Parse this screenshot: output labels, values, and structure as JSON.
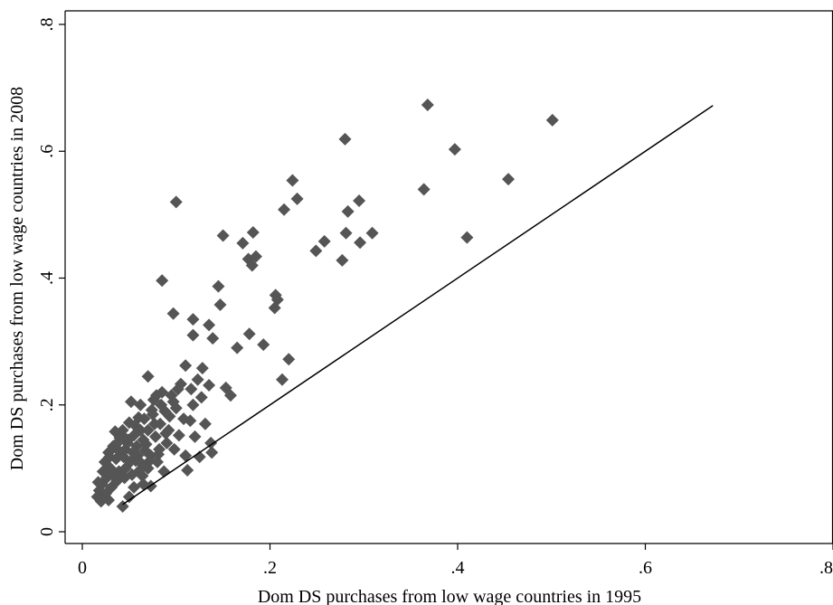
{
  "chart_data": {
    "type": "scatter",
    "title": "",
    "xlabel": "Dom DS purchases from low wage countries in 1995",
    "ylabel": "Dom DS purchases from low wage countries in 2008",
    "xlim": [
      0,
      0.8
    ],
    "ylim": [
      0,
      0.8
    ],
    "xticks": [
      0,
      0.2,
      0.4,
      0.6,
      0.8
    ],
    "xtick_labels": [
      "0",
      ".2",
      ".4",
      ".6",
      ".8"
    ],
    "yticks": [
      0,
      0.2,
      0.4,
      0.6,
      0.8
    ],
    "ytick_labels": [
      "0",
      ".2",
      ".4",
      ".6",
      ".8"
    ],
    "grid": false,
    "marker": "diamond",
    "marker_color": "#555555",
    "reference_line": {
      "x": [
        0.043,
        0.672
      ],
      "y": [
        0.043,
        0.672
      ]
    },
    "points": [
      [
        0.368,
        0.673
      ],
      [
        0.501,
        0.649
      ],
      [
        0.28,
        0.619
      ],
      [
        0.397,
        0.603
      ],
      [
        0.454,
        0.556
      ],
      [
        0.1,
        0.52
      ],
      [
        0.224,
        0.554
      ],
      [
        0.229,
        0.525
      ],
      [
        0.364,
        0.54
      ],
      [
        0.295,
        0.522
      ],
      [
        0.215,
        0.508
      ],
      [
        0.283,
        0.505
      ],
      [
        0.41,
        0.464
      ],
      [
        0.15,
        0.467
      ],
      [
        0.281,
        0.471
      ],
      [
        0.309,
        0.471
      ],
      [
        0.296,
        0.456
      ],
      [
        0.258,
        0.458
      ],
      [
        0.249,
        0.443
      ],
      [
        0.171,
        0.455
      ],
      [
        0.182,
        0.472
      ],
      [
        0.277,
        0.428
      ],
      [
        0.177,
        0.43
      ],
      [
        0.181,
        0.42
      ],
      [
        0.185,
        0.434
      ],
      [
        0.085,
        0.396
      ],
      [
        0.145,
        0.387
      ],
      [
        0.206,
        0.373
      ],
      [
        0.208,
        0.366
      ],
      [
        0.205,
        0.353
      ],
      [
        0.147,
        0.358
      ],
      [
        0.097,
        0.344
      ],
      [
        0.118,
        0.335
      ],
      [
        0.135,
        0.326
      ],
      [
        0.165,
        0.29
      ],
      [
        0.178,
        0.312
      ],
      [
        0.193,
        0.295
      ],
      [
        0.118,
        0.31
      ],
      [
        0.139,
        0.305
      ],
      [
        0.22,
        0.272
      ],
      [
        0.213,
        0.24
      ],
      [
        0.128,
        0.258
      ],
      [
        0.11,
        0.262
      ],
      [
        0.153,
        0.227
      ],
      [
        0.158,
        0.215
      ],
      [
        0.07,
        0.245
      ],
      [
        0.105,
        0.233
      ],
      [
        0.116,
        0.225
      ],
      [
        0.123,
        0.24
      ],
      [
        0.135,
        0.231
      ],
      [
        0.095,
        0.215
      ],
      [
        0.085,
        0.22
      ],
      [
        0.076,
        0.208
      ],
      [
        0.088,
        0.19
      ],
      [
        0.1,
        0.195
      ],
      [
        0.118,
        0.2
      ],
      [
        0.127,
        0.212
      ],
      [
        0.108,
        0.178
      ],
      [
        0.131,
        0.17
      ],
      [
        0.052,
        0.205
      ],
      [
        0.062,
        0.2
      ],
      [
        0.075,
        0.185
      ],
      [
        0.083,
        0.17
      ],
      [
        0.092,
        0.16
      ],
      [
        0.07,
        0.16
      ],
      [
        0.06,
        0.18
      ],
      [
        0.05,
        0.172
      ],
      [
        0.043,
        0.16
      ],
      [
        0.035,
        0.158
      ],
      [
        0.055,
        0.152
      ],
      [
        0.065,
        0.145
      ],
      [
        0.078,
        0.15
      ],
      [
        0.09,
        0.14
      ],
      [
        0.098,
        0.13
      ],
      [
        0.11,
        0.12
      ],
      [
        0.125,
        0.118
      ],
      [
        0.137,
        0.14
      ],
      [
        0.138,
        0.125
      ],
      [
        0.12,
        0.15
      ],
      [
        0.112,
        0.097
      ],
      [
        0.087,
        0.095
      ],
      [
        0.08,
        0.11
      ],
      [
        0.073,
        0.12
      ],
      [
        0.067,
        0.128
      ],
      [
        0.058,
        0.135
      ],
      [
        0.048,
        0.14
      ],
      [
        0.04,
        0.148
      ],
      [
        0.033,
        0.135
      ],
      [
        0.028,
        0.125
      ],
      [
        0.024,
        0.11
      ],
      [
        0.03,
        0.1
      ],
      [
        0.036,
        0.115
      ],
      [
        0.044,
        0.118
      ],
      [
        0.051,
        0.11
      ],
      [
        0.057,
        0.112
      ],
      [
        0.063,
        0.108
      ],
      [
        0.07,
        0.1
      ],
      [
        0.046,
        0.1
      ],
      [
        0.039,
        0.095
      ],
      [
        0.032,
        0.09
      ],
      [
        0.026,
        0.085
      ],
      [
        0.021,
        0.075
      ],
      [
        0.018,
        0.065
      ],
      [
        0.016,
        0.055
      ],
      [
        0.02,
        0.048
      ],
      [
        0.025,
        0.06
      ],
      [
        0.031,
        0.07
      ],
      [
        0.037,
        0.08
      ],
      [
        0.045,
        0.085
      ],
      [
        0.053,
        0.09
      ],
      [
        0.06,
        0.095
      ],
      [
        0.055,
        0.07
      ],
      [
        0.065,
        0.075
      ],
      [
        0.073,
        0.072
      ],
      [
        0.043,
        0.04
      ],
      [
        0.05,
        0.055
      ],
      [
        0.028,
        0.05
      ],
      [
        0.046,
        0.13
      ],
      [
        0.054,
        0.125
      ],
      [
        0.062,
        0.16
      ],
      [
        0.082,
        0.13
      ],
      [
        0.093,
        0.182
      ],
      [
        0.103,
        0.152
      ],
      [
        0.115,
        0.175
      ],
      [
        0.039,
        0.128
      ],
      [
        0.049,
        0.145
      ],
      [
        0.059,
        0.12
      ],
      [
        0.068,
        0.138
      ],
      [
        0.077,
        0.17
      ],
      [
        0.084,
        0.2
      ],
      [
        0.079,
        0.215
      ],
      [
        0.074,
        0.192
      ],
      [
        0.066,
        0.178
      ],
      [
        0.056,
        0.168
      ],
      [
        0.044,
        0.15
      ],
      [
        0.036,
        0.138
      ],
      [
        0.029,
        0.118
      ],
      [
        0.022,
        0.095
      ],
      [
        0.017,
        0.078
      ],
      [
        0.064,
        0.088
      ],
      [
        0.072,
        0.112
      ],
      [
        0.081,
        0.122
      ],
      [
        0.089,
        0.155
      ],
      [
        0.097,
        0.205
      ],
      [
        0.102,
        0.225
      ]
    ]
  }
}
